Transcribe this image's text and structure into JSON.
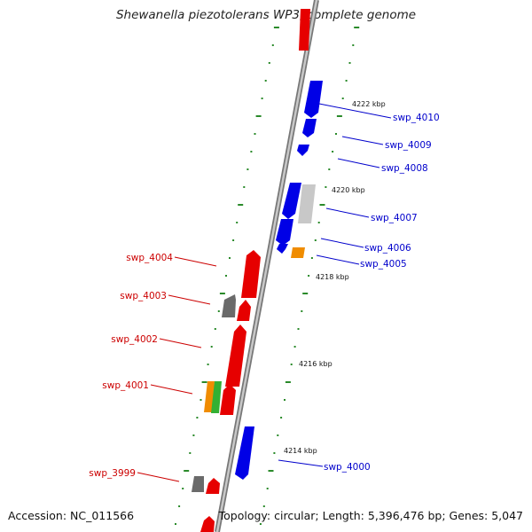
{
  "title": "Shewanella piezotolerans WP3, complete genome",
  "footer": {
    "accession": "Accession: NC_011566",
    "topology": "Topology: circular; Length: 5,396,476 bp; Genes: 5,047"
  },
  "colors": {
    "forward_strand": "#e60000",
    "reverse_strand": "#0000e6",
    "grey_gene": "#6a6a6a",
    "light_grey_gene": "#c8c8c8",
    "orange_gene": "#f08c00",
    "green_gene": "#33b033",
    "tick_mark": "#2a8a2a",
    "label_forward": "#cc0000",
    "label_reverse": "#0000cc"
  },
  "ticks": [
    "4222 kbp",
    "4220 kbp",
    "4218 kbp",
    "4216 kbp",
    "4214 kbp"
  ],
  "gene_labels_reverse": [
    "swp_4010",
    "swp_4009",
    "swp_4008",
    "swp_4007",
    "swp_4006",
    "swp_4005",
    "swp_4000"
  ],
  "gene_labels_forward": [
    "swp_4004",
    "swp_4003",
    "swp_4002",
    "swp_4001",
    "swp_3999"
  ]
}
